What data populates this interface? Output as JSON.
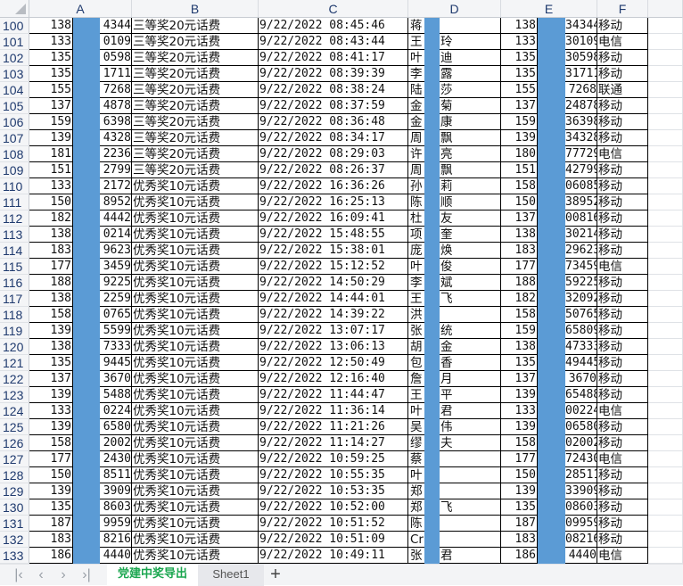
{
  "columns": [
    "A",
    "B",
    "C",
    "D",
    "E",
    "F"
  ],
  "rows": [
    {
      "n": "100",
      "a1": "138",
      "a2": "4344",
      "b": "三等奖20元话费",
      "c": "9/22/2022 08:45:46",
      "d1": "蒋",
      "d2": "",
      "e1": "138",
      "e2": "34344",
      "f": "移动"
    },
    {
      "n": "101",
      "a1": "133",
      "a2": "0109",
      "b": "三等奖20元话费",
      "c": "9/22/2022 08:43:44",
      "d1": "王",
      "d2": "玲",
      "e1": "133",
      "e2": "30109",
      "f": "电信"
    },
    {
      "n": "102",
      "a1": "135",
      "a2": "0598",
      "b": "三等奖20元话费",
      "c": "9/22/2022 08:41:17",
      "d1": "叶",
      "d2": "迪",
      "e1": "135",
      "e2": "30598",
      "f": "移动"
    },
    {
      "n": "103",
      "a1": "135",
      "a2": "1711",
      "b": "三等奖20元话费",
      "c": "9/22/2022 08:39:39",
      "d1": "李",
      "d2": "露",
      "e1": "135",
      "e2": "31711",
      "f": "移动"
    },
    {
      "n": "104",
      "a1": "155",
      "a2": "7268",
      "b": "三等奖20元话费",
      "c": "9/22/2022 08:38:24",
      "d1": "陆",
      "d2": "莎",
      "e1": "155",
      "e2": "7268",
      "f": "联通"
    },
    {
      "n": "105",
      "a1": "137",
      "a2": "4878",
      "b": "三等奖20元话费",
      "c": "9/22/2022 08:37:59",
      "d1": "金",
      "d2": "菊",
      "e1": "137",
      "e2": "24878",
      "f": "移动"
    },
    {
      "n": "106",
      "a1": "159",
      "a2": "6398",
      "b": "三等奖20元话费",
      "c": "9/22/2022 08:36:48",
      "d1": "金",
      "d2": "康",
      "e1": "159",
      "e2": "36398",
      "f": "移动"
    },
    {
      "n": "107",
      "a1": "139",
      "a2": "4328",
      "b": "三等奖20元话费",
      "c": "9/22/2022 08:34:17",
      "d1": "周",
      "d2": "飘",
      "e1": "139",
      "e2": "34328",
      "f": "移动"
    },
    {
      "n": "108",
      "a1": "181",
      "a2": "2236",
      "b": "三等奖20元话费",
      "c": "9/22/2022 08:29:03",
      "d1": "许",
      "d2": "亮",
      "e1": "180",
      "e2": "77729",
      "f": "电信"
    },
    {
      "n": "109",
      "a1": "151",
      "a2": "2799",
      "b": "三等奖20元话费",
      "c": "9/22/2022 08:26:37",
      "d1": "周",
      "d2": "飘",
      "e1": "151",
      "e2": "42799",
      "f": "移动"
    },
    {
      "n": "110",
      "a1": "133",
      "a2": "2172",
      "b": "优秀奖10元话费",
      "c": "9/22/2022 16:36:26",
      "d1": "孙",
      "d2": "莉",
      "e1": "158",
      "e2": "06085",
      "f": "移动"
    },
    {
      "n": "111",
      "a1": "150",
      "a2": "8952",
      "b": "优秀奖10元话费",
      "c": "9/22/2022 16:25:13",
      "d1": "陈",
      "d2": "顺",
      "e1": "150",
      "e2": "38952",
      "f": "移动"
    },
    {
      "n": "112",
      "a1": "182",
      "a2": "4442",
      "b": "优秀奖10元话费",
      "c": "9/22/2022 16:09:41",
      "d1": "杜",
      "d2": "友",
      "e1": "137",
      "e2": "00816",
      "f": "移动"
    },
    {
      "n": "113",
      "a1": "138",
      "a2": "0214",
      "b": "优秀奖10元话费",
      "c": "9/22/2022 15:48:55",
      "d1": "项",
      "d2": "奎",
      "e1": "138",
      "e2": "30214",
      "f": "移动"
    },
    {
      "n": "114",
      "a1": "183",
      "a2": "9623",
      "b": "优秀奖10元话费",
      "c": "9/22/2022 15:38:01",
      "d1": "庞",
      "d2": "焕",
      "e1": "183",
      "e2": "29623",
      "f": "移动"
    },
    {
      "n": "115",
      "a1": "177",
      "a2": "3459",
      "b": "优秀奖10元话费",
      "c": "9/22/2022 15:12:52",
      "d1": "叶",
      "d2": "俊",
      "e1": "177",
      "e2": "73459",
      "f": "电信"
    },
    {
      "n": "116",
      "a1": "188",
      "a2": "9225",
      "b": "优秀奖10元话费",
      "c": "9/22/2022 14:50:29",
      "d1": "李",
      "d2": "斌",
      "e1": "188",
      "e2": "59225",
      "f": "移动"
    },
    {
      "n": "117",
      "a1": "138",
      "a2": "2259",
      "b": "优秀奖10元话费",
      "c": "9/22/2022 14:44:01",
      "d1": "王",
      "d2": "飞",
      "e1": "182",
      "e2": "32092",
      "f": "移动"
    },
    {
      "n": "118",
      "a1": "158",
      "a2": "0765",
      "b": "优秀奖10元话费",
      "c": "9/22/2022 14:39:22",
      "d1": "洪",
      "d2": "",
      "e1": "158",
      "e2": "50765",
      "f": "移动"
    },
    {
      "n": "119",
      "a1": "139",
      "a2": "5599",
      "b": "优秀奖10元话费",
      "c": "9/22/2022 13:07:17",
      "d1": "张",
      "d2": "统",
      "e1": "159",
      "e2": "65809",
      "f": "移动"
    },
    {
      "n": "120",
      "a1": "138",
      "a2": "7333",
      "b": "优秀奖10元话费",
      "c": "9/22/2022 13:06:13",
      "d1": "胡",
      "d2": "金",
      "e1": "138",
      "e2": "47333",
      "f": "移动"
    },
    {
      "n": "121",
      "a1": "135",
      "a2": "9445",
      "b": "优秀奖10元话费",
      "c": "9/22/2022 12:50:49",
      "d1": "包",
      "d2": "香",
      "e1": "135",
      "e2": "49445",
      "f": "移动"
    },
    {
      "n": "122",
      "a1": "137",
      "a2": "3670",
      "b": "优秀奖10元话费",
      "c": "9/22/2022 12:16:40",
      "d1": "詹",
      "d2": "月",
      "e1": "137",
      "e2": "3670",
      "f": "移动"
    },
    {
      "n": "123",
      "a1": "139",
      "a2": "5488",
      "b": "优秀奖10元话费",
      "c": "9/22/2022 11:44:47",
      "d1": "王",
      "d2": "平",
      "e1": "139",
      "e2": "65488",
      "f": "移动"
    },
    {
      "n": "124",
      "a1": "133",
      "a2": "0224",
      "b": "优秀奖10元话费",
      "c": "9/22/2022 11:36:14",
      "d1": "叶",
      "d2": "君",
      "e1": "133",
      "e2": "00224",
      "f": "电信"
    },
    {
      "n": "125",
      "a1": "139",
      "a2": "6580",
      "b": "优秀奖10元话费",
      "c": "9/22/2022 11:21:26",
      "d1": "吴",
      "d2": "伟",
      "e1": "139",
      "e2": "06580",
      "f": "移动"
    },
    {
      "n": "126",
      "a1": "158",
      "a2": "2002",
      "b": "优秀奖10元话费",
      "c": "9/22/2022 11:14:27",
      "d1": "缪",
      "d2": "夫",
      "e1": "158",
      "e2": "02002",
      "f": "移动"
    },
    {
      "n": "127",
      "a1": "177",
      "a2": "2430",
      "b": "优秀奖10元话费",
      "c": "9/22/2022 10:59:25",
      "d1": "蔡",
      "d2": "",
      "e1": "177",
      "e2": "72430",
      "f": "电信"
    },
    {
      "n": "128",
      "a1": "150",
      "a2": "8511",
      "b": "优秀奖10元话费",
      "c": "9/22/2022 10:55:35",
      "d1": "叶",
      "d2": "",
      "e1": "150",
      "e2": "28511",
      "f": "移动"
    },
    {
      "n": "129",
      "a1": "139",
      "a2": "3909",
      "b": "优秀奖10元话费",
      "c": "9/22/2022 10:53:35",
      "d1": "郑",
      "d2": "",
      "e1": "139",
      "e2": "33909",
      "f": "移动"
    },
    {
      "n": "130",
      "a1": "135",
      "a2": "8603",
      "b": "优秀奖10元话费",
      "c": "9/22/2022 10:52:00",
      "d1": "郑",
      "d2": "飞",
      "e1": "135",
      "e2": "08603",
      "f": "移动"
    },
    {
      "n": "131",
      "a1": "187",
      "a2": "9959",
      "b": "优秀奖10元话费",
      "c": "9/22/2022 10:51:52",
      "d1": "陈",
      "d2": "",
      "e1": "187",
      "e2": "09959",
      "f": "移动"
    },
    {
      "n": "132",
      "a1": "183",
      "a2": "8216",
      "b": "优秀奖10元话费",
      "c": "9/22/2022 10:51:09",
      "d1": "Cr",
      "d2": "",
      "e1": "183",
      "e2": "08216",
      "f": "移动"
    },
    {
      "n": "133",
      "a1": "186",
      "a2": "4440",
      "b": "优秀奖10元话费",
      "c": "9/22/2022 10:49:11",
      "d1": "张",
      "d2": "君",
      "e1": "186",
      "e2": "4440",
      "f": "电信"
    }
  ],
  "redaction_color": "#5b9bd5",
  "sheet_tabs": {
    "active": "党建中奖导出",
    "other": "Sheet1",
    "active_color": "#1aa64f",
    "nav_icons": [
      "first-sheet-icon",
      "prev-sheet-icon",
      "next-sheet-icon",
      "last-sheet-icon"
    ],
    "nav_glyphs": [
      "|‹",
      "‹",
      "›",
      "›|"
    ],
    "add_glyph": "+"
  }
}
